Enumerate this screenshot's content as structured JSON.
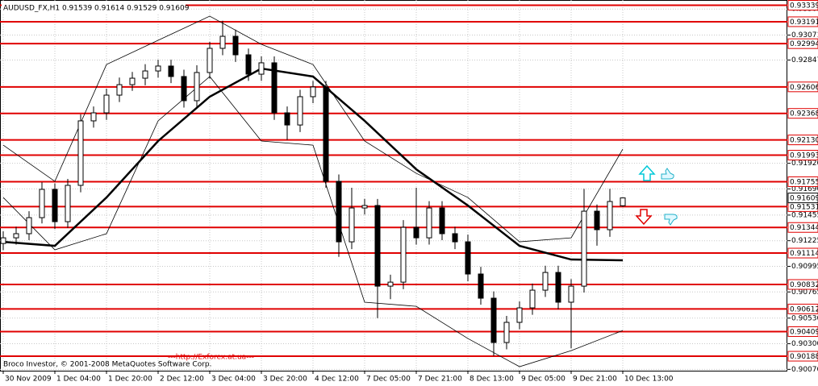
{
  "chart_data": {
    "type": "candlestick",
    "header": "AUDUSD_FX,H1  0.91539 0.91614 0.91529 0.91609",
    "footer": "Broco Investor, © 2001-2008 MetaQuotes Software Corp.",
    "link": "---http://Exforex.at.ua---",
    "categories": [
      "30 Nov 2009",
      null,
      null,
      null,
      "1 Dec 04:00",
      null,
      null,
      null,
      "1 Dec 20:00",
      null,
      null,
      null,
      "2 Dec 12:00",
      null,
      null,
      null,
      "3 Dec 04:00",
      null,
      null,
      null,
      "3 Dec 20:00",
      null,
      null,
      null,
      "4 Dec 12:00",
      null,
      null,
      null,
      "7 Dec 05:00",
      null,
      null,
      null,
      "7 Dec 21:00",
      null,
      null,
      null,
      "8 Dec 13:00",
      null,
      null,
      null,
      "9 Dec 05:00",
      null,
      null,
      null,
      "9 Dec 21:00",
      null,
      null,
      null,
      "10 Dec 13:00"
    ],
    "open": [
      0.912,
      0.91251,
      0.91288,
      0.91432,
      0.91686,
      0.91396,
      0.91722,
      0.92301,
      0.92373,
      0.92532,
      0.92626,
      0.92684,
      0.92749,
      0.92793,
      0.92699,
      0.92482,
      0.92735,
      0.92952,
      0.9306,
      0.92894,
      0.9272,
      0.92822,
      0.92373,
      0.92264,
      0.92518,
      0.92605,
      0.91758,
      0.91215,
      0.91519,
      0.91541,
      0.90817,
      0.90853,
      0.91345,
      0.91251,
      0.91519,
      0.91288,
      0.91215,
      0.90926,
      0.90709,
      0.90311,
      0.90492,
      0.90622,
      0.90781,
      0.9094,
      0.90673,
      0.90817,
      0.9149,
      0.91324,
      0.91539
    ],
    "high": [
      0.9131,
      0.9135,
      0.9149,
      0.9175,
      0.9174,
      0.9178,
      0.9236,
      0.9243,
      0.9259,
      0.9269,
      0.9274,
      0.9281,
      0.9285,
      0.9285,
      0.9276,
      0.928,
      0.9301,
      0.932,
      0.9312,
      0.9295,
      0.9288,
      0.9288,
      0.9243,
      0.9258,
      0.9266,
      0.9266,
      0.9182,
      0.917,
      0.916,
      0.916,
      0.9092,
      0.9141,
      0.917,
      0.9158,
      0.9158,
      0.9135,
      0.9128,
      0.9099,
      0.9077,
      0.9055,
      0.9068,
      0.9084,
      0.91,
      0.91,
      0.9088,
      0.9169,
      0.9155,
      0.9169,
      0.91614
    ],
    "low": [
      0.9114,
      0.9119,
      0.9123,
      0.9138,
      0.9133,
      0.9134,
      0.9166,
      0.9224,
      0.9231,
      0.9247,
      0.9257,
      0.9262,
      0.9269,
      0.9264,
      0.9242,
      0.9242,
      0.9268,
      0.9289,
      0.9283,
      0.9266,
      0.9266,
      0.9231,
      0.9213,
      0.922,
      0.9246,
      0.917,
      0.9108,
      0.9115,
      0.9146,
      0.9053,
      0.907,
      0.9079,
      0.9119,
      0.9119,
      0.9123,
      0.9115,
      0.9086,
      0.9065,
      0.9019,
      0.9025,
      0.9043,
      0.9056,
      0.9072,
      0.9061,
      0.9026,
      0.9076,
      0.9118,
      0.9126,
      0.91529
    ],
    "close": [
      0.91251,
      0.91288,
      0.91432,
      0.91686,
      0.91396,
      0.91722,
      0.92301,
      0.92373,
      0.92532,
      0.92626,
      0.92684,
      0.92749,
      0.92793,
      0.92699,
      0.92482,
      0.92735,
      0.92952,
      0.9306,
      0.92894,
      0.9272,
      0.92822,
      0.92373,
      0.92264,
      0.92518,
      0.92605,
      0.91758,
      0.91215,
      0.91519,
      0.91541,
      0.90817,
      0.90853,
      0.91345,
      0.91251,
      0.91519,
      0.91288,
      0.91215,
      0.90926,
      0.90709,
      0.90311,
      0.90492,
      0.90622,
      0.90781,
      0.9094,
      0.90673,
      0.90817,
      0.9149,
      0.91324,
      0.91577,
      0.91609
    ],
    "ma": {
      "x": [
        0,
        4,
        8,
        12,
        16,
        20,
        24,
        28,
        32,
        36,
        40,
        44,
        48
      ],
      "values": [
        0.91215,
        0.91179,
        0.91613,
        0.9212,
        0.92518,
        0.92771,
        0.92699,
        0.92301,
        0.91866,
        0.91541,
        0.91179,
        0.91056,
        0.91049
      ],
      "color": "#000000"
    },
    "upper_band": {
      "x": [
        0,
        4,
        8,
        12,
        16,
        20,
        24,
        28,
        32,
        36,
        40,
        44,
        48
      ],
      "values": [
        0.92083,
        0.91758,
        0.92807,
        0.93024,
        0.93241,
        0.92988,
        0.92807,
        0.9212,
        0.9183,
        0.91613,
        0.91215,
        0.91251,
        0.92047
      ],
      "color": "#000000"
    },
    "lower_band": {
      "x": [
        0,
        4,
        8,
        12,
        16,
        20,
        24,
        28,
        32,
        36,
        40,
        44,
        48
      ],
      "values": [
        0.91613,
        0.91143,
        0.91288,
        0.92301,
        0.92699,
        0.9212,
        0.92083,
        0.90673,
        0.90636,
        0.90347,
        0.90094,
        0.90238,
        0.90419
      ],
      "color": "#000000"
    },
    "ylim": [
      0.90058,
      0.93386
    ],
    "yticks": [
      0.93305,
      0.93071,
      0.92847,
      {
        "value": 0.9192,
        "label": "0.91920"
      },
      {
        "value": 0.9169,
        "label": "0.91690"
      },
      0.91455,
      0.91225,
      0.90995,
      0.90765,
      {
        "value": 0.9053,
        "label": "0.90530"
      },
      {
        "value": 0.903,
        "label": "0.90300"
      },
      {
        "value": 0.9007,
        "label": "0.90070"
      }
    ],
    "levels": [
      0.93339,
      0.93191,
      0.92994,
      0.92606,
      0.92368,
      {
        "value": 0.9213,
        "label": "0.92130"
      },
      0.91993,
      0.91755,
      0.91531,
      0.91344,
      0.91114,
      0.90832,
      0.90612,
      0.90409,
      0.90188
    ],
    "level_color": "#e00000",
    "last_price": 0.91609,
    "grid": true
  }
}
